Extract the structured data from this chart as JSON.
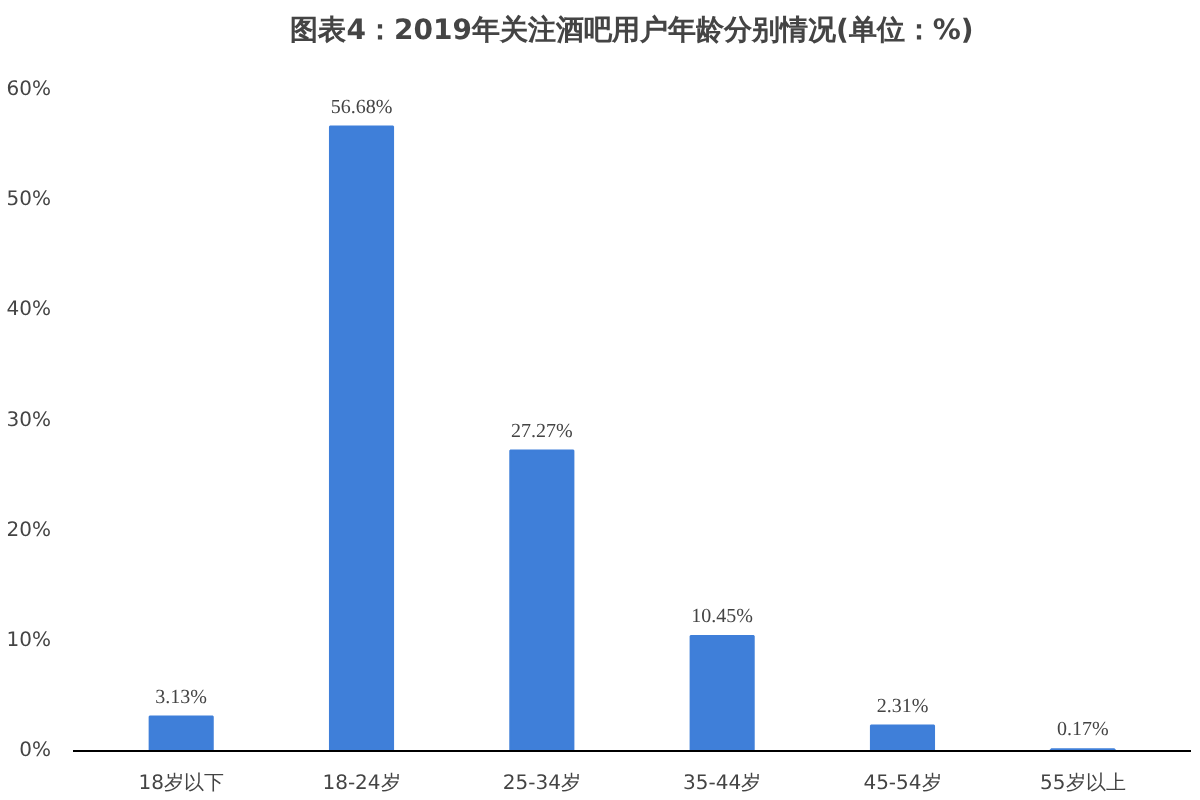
{
  "chart_data": {
    "type": "bar",
    "title": "图表4：2019年关注酒吧用户年龄分别情况(单位：%)",
    "categories": [
      "18岁以下",
      "18-24岁",
      "25-34岁",
      "35-44岁",
      "45-54岁",
      "55岁以上"
    ],
    "values": [
      3.13,
      56.68,
      27.27,
      10.45,
      2.31,
      0.17
    ],
    "value_labels": [
      "3.13%",
      "56.68%",
      "27.27%",
      "10.45%",
      "2.31%",
      "0.17%"
    ],
    "color": "#3f7fd9",
    "ylim": [
      0,
      60
    ],
    "yticks": [
      {
        "value": 0,
        "label": "0%"
      },
      {
        "value": 10,
        "label": "10%"
      },
      {
        "value": 20,
        "label": "20%"
      },
      {
        "value": 30,
        "label": "30%"
      },
      {
        "value": 40,
        "label": "40%"
      },
      {
        "value": 50,
        "label": "50%"
      },
      {
        "value": 60,
        "label": "60%"
      }
    ],
    "grid": false
  }
}
